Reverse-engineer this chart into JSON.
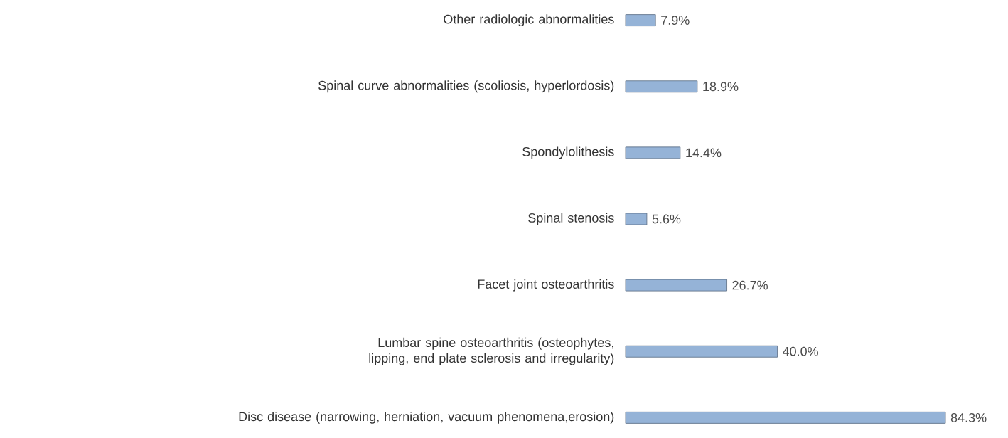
{
  "chart_data": {
    "type": "bar",
    "orientation": "horizontal",
    "color": "#95b3d7",
    "categories": [
      "Other radiologic abnormalities",
      "Spinal curve abnormalities (scoliosis, hyperlordosis)",
      "Spondylolithesis",
      "Spinal stenosis",
      "Facet joint osteoarthritis",
      "Lumbar spine osteoarthritis (osteophytes, lipping, end plate sclerosis and irregularity)",
      "Disc disease (narrowing, herniation, vacuum phenomena,erosion)"
    ],
    "values": [
      7.9,
      18.9,
      14.4,
      5.6,
      26.7,
      40.0,
      84.3
    ],
    "value_labels": [
      "7.9%",
      "18.9%",
      "14.4%",
      "5.6%",
      "26.7%",
      "40.0%",
      "84.3%"
    ]
  }
}
